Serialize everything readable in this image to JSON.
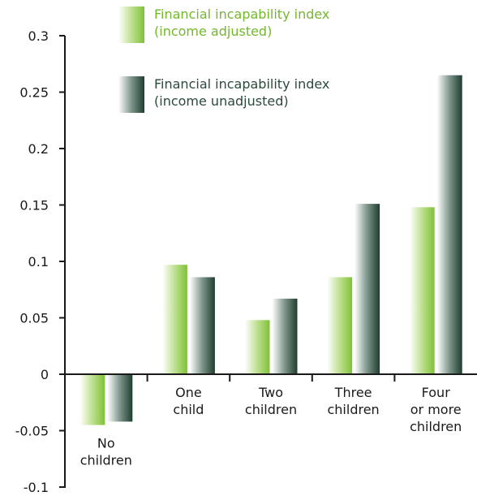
{
  "chart_data": {
    "type": "bar",
    "categories": [
      [
        "No",
        "children"
      ],
      [
        "One",
        "child"
      ],
      [
        "Two",
        "children"
      ],
      [
        "Three",
        "children"
      ],
      [
        "Four",
        "or more",
        "children"
      ]
    ],
    "series": [
      {
        "name": [
          "Financial incapability index",
          "(income adjusted)"
        ],
        "values": [
          -0.045,
          0.097,
          0.048,
          0.086,
          0.148
        ],
        "color": "#8cc63f"
      },
      {
        "name": [
          "Financial incapability index",
          "(income unadjusted)"
        ],
        "values": [
          -0.042,
          0.086,
          0.067,
          0.151,
          0.265
        ],
        "color": "#2b4a3a"
      }
    ],
    "ylim": [
      -0.1,
      0.3
    ],
    "yticks": [
      "-0.1",
      "-0.05",
      "0",
      "0.05",
      "0.1",
      "0.15",
      "0.2",
      "0.25",
      "0.3"
    ],
    "legend_position": "top"
  }
}
